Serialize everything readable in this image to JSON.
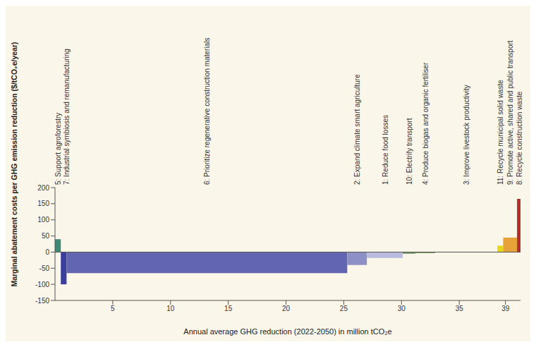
{
  "chart_data": {
    "type": "bar",
    "x_label": "Annual average GHG reduction (2022-2050) in million tCO₂e",
    "y_label": "Marginal abatement costs per GHG emission reduction ($/tCO₂e/year)",
    "categories": [
      "5: Support agroforestry",
      "7: Industrial symbiosis and remanufacturing",
      "6: Prioritize regenerative construction materials",
      "2: Expand climate smart agriculture",
      "1: Reduce food losses",
      "10: Electrify transport",
      "4: Produce biogas and organic fertiliser",
      "3: Improve livestock productivity",
      "11: Recycle municipal solid waste",
      "9: Promote active, shared and public transport",
      "8: Recycle construction waste"
    ],
    "values": [
      40,
      -100,
      -65,
      -40,
      -18,
      -5,
      -3,
      -1,
      20,
      45,
      165
    ],
    "reductions": [
      0.5,
      0.5,
      24.3,
      1.7,
      3.1,
      1.1,
      1.7,
      5.4,
      0.5,
      1.2,
      0.3
    ],
    "colors": [
      "#3f8a76",
      "#3b3f9a",
      "#6165b2",
      "#8d90c6",
      "#b9bade",
      "#6f8f63",
      "#5b8c3a",
      "#b5b5a8",
      "#e6d720",
      "#e8a23a",
      "#b3302a"
    ],
    "xlim": [
      0,
      40.3
    ],
    "xticks": [
      5,
      10,
      15,
      20,
      25,
      30,
      35,
      39
    ],
    "ylim": [
      -150,
      200
    ],
    "yticks": [
      -150,
      -100,
      -50,
      0,
      50,
      100,
      150,
      200
    ]
  }
}
